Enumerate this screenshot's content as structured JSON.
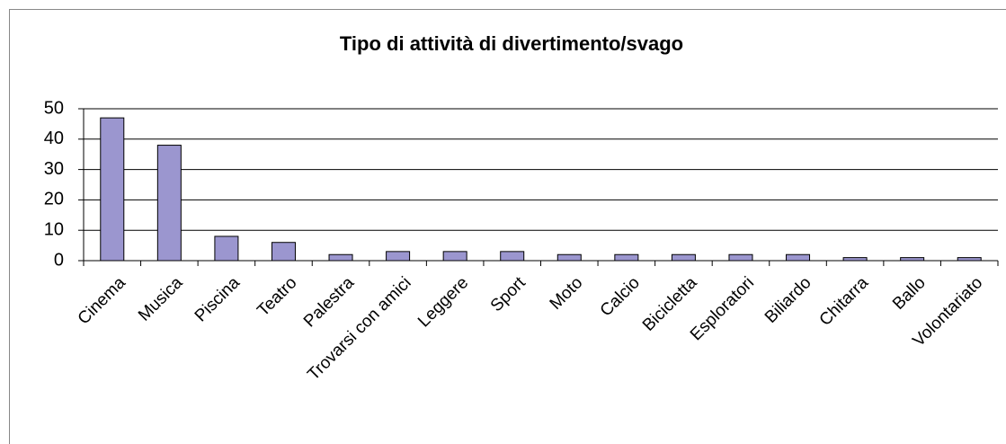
{
  "chart_data": {
    "type": "bar",
    "title": "Tipo di attività di divertimento/svago",
    "categories": [
      "Cinema",
      "Musica",
      "Piscina",
      "Teatro",
      "Palestra",
      "Trovarsi con amici",
      "Leggere",
      "Sport",
      "Moto",
      "Calcio",
      "Bicicletta",
      "Esploratori",
      "Biliardo",
      "Chitarra",
      "Ballo",
      "Volontariato"
    ],
    "values": [
      47,
      38,
      8,
      6,
      2,
      3,
      3,
      3,
      2,
      2,
      2,
      2,
      2,
      1,
      1,
      1
    ],
    "color": "#9b96cf",
    "ylim": [
      0,
      50
    ],
    "yticks": [
      0,
      10,
      20,
      30,
      40,
      50
    ],
    "grid": true
  }
}
